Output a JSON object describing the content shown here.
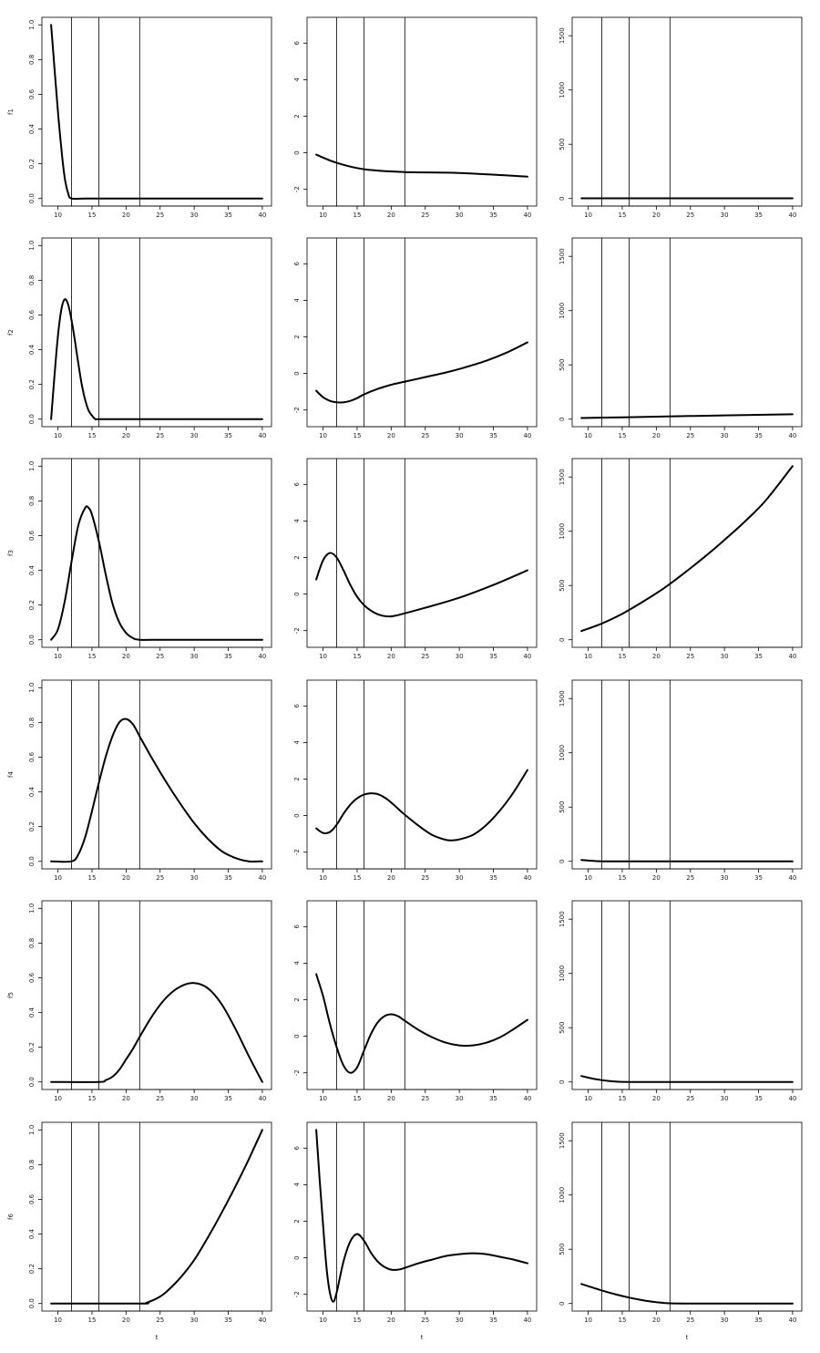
{
  "chart_data": {
    "type": "line",
    "layout": "6 rows x 3 columns",
    "xlabel": "t",
    "xlim": [
      9,
      40
    ],
    "xticks": [
      10,
      15,
      20,
      25,
      30,
      35,
      40
    ],
    "knots": [
      12,
      16,
      22
    ],
    "columns": [
      {
        "ylim": [
          0,
          1
        ],
        "yticks": [
          "0.0",
          "0.2",
          "0.4",
          "0.6",
          "0.8",
          "1.0"
        ]
      },
      {
        "ylim": [
          -2.5,
          7
        ],
        "yticks": [
          "-2",
          "0",
          "2",
          "4",
          "6"
        ]
      },
      {
        "ylim": [
          0,
          1600
        ],
        "yticks": [
          "0",
          "500",
          "1000",
          "1500"
        ]
      }
    ],
    "rows": [
      {
        "ylabel": "f1",
        "series": [
          {
            "x": [
              9,
              9.5,
              10,
              10.5,
              11,
              11.5,
              12,
              14,
              16,
              20,
              25,
              30,
              35,
              40
            ],
            "y": [
              1.0,
              0.75,
              0.5,
              0.29,
              0.12,
              0.03,
              0.0,
              0.0,
              0.0,
              0.0,
              0.0,
              0.0,
              0.0,
              0.0
            ]
          },
          {
            "x": [
              9,
              12,
              16,
              22,
              30,
              40
            ],
            "y": [
              -0.1,
              -0.55,
              -0.9,
              -1.05,
              -1.1,
              -1.3
            ]
          },
          {
            "x": [
              9,
              15,
              20,
              25,
              30,
              35,
              40
            ],
            "y": [
              2,
              2,
              2,
              2,
              2,
              2,
              2
            ]
          }
        ]
      },
      {
        "ylabel": "f2",
        "series": [
          {
            "x": [
              9,
              9.5,
              10,
              10.5,
              11,
              11.5,
              12,
              12.5,
              13,
              13.5,
              14,
              14.5,
              15,
              15.5,
              16,
              20,
              25,
              30,
              35,
              40
            ],
            "y": [
              0.0,
              0.25,
              0.48,
              0.63,
              0.69,
              0.66,
              0.57,
              0.45,
              0.32,
              0.2,
              0.11,
              0.05,
              0.02,
              0.0,
              0.0,
              0.0,
              0.0,
              0.0,
              0.0,
              0.0
            ]
          },
          {
            "x": [
              9,
              10,
              11,
              12,
              13,
              14,
              15,
              16,
              18,
              20,
              22,
              25,
              28,
              31,
              34,
              37,
              40
            ],
            "y": [
              -0.95,
              -1.3,
              -1.5,
              -1.58,
              -1.58,
              -1.5,
              -1.35,
              -1.15,
              -0.85,
              -0.62,
              -0.45,
              -0.2,
              0.05,
              0.35,
              0.7,
              1.15,
              1.7
            ]
          },
          {
            "x": [
              9,
              15,
              20,
              25,
              30,
              35,
              40
            ],
            "y": [
              10,
              17,
              23,
              29,
              35,
              40,
              45
            ]
          }
        ]
      },
      {
        "ylabel": "f3",
        "series": [
          {
            "x": [
              9,
              10,
              11,
              12,
              13,
              14,
              14.5,
              15,
              16,
              17,
              18,
              19,
              20,
              21,
              22,
              25,
              30,
              35,
              40
            ],
            "y": [
              0.0,
              0.06,
              0.22,
              0.45,
              0.66,
              0.76,
              0.76,
              0.72,
              0.57,
              0.38,
              0.21,
              0.1,
              0.04,
              0.01,
              0.0,
              0.0,
              0.0,
              0.0,
              0.0
            ]
          },
          {
            "x": [
              9,
              10,
              11,
              12,
              13,
              14,
              15,
              16,
              17,
              18,
              19,
              20,
              21,
              22,
              25,
              30,
              35,
              40
            ],
            "y": [
              0.8,
              1.85,
              2.25,
              2.0,
              1.3,
              0.5,
              -0.15,
              -0.6,
              -0.9,
              -1.1,
              -1.2,
              -1.22,
              -1.15,
              -1.05,
              -0.75,
              -0.2,
              0.5,
              1.3
            ]
          },
          {
            "x": [
              9,
              12,
              15,
              18,
              21,
              24,
              27,
              30,
              33,
              36,
              40
            ],
            "y": [
              80,
              150,
              240,
              350,
              470,
              610,
              760,
              920,
              1090,
              1280,
              1600
            ]
          }
        ]
      },
      {
        "ylabel": "f4",
        "series": [
          {
            "x": [
              9,
              12,
              13,
              14,
              15,
              16,
              17,
              18,
              19,
              20,
              21,
              22,
              24,
              26,
              28,
              30,
              32,
              34,
              36,
              38,
              40
            ],
            "y": [
              0.0,
              0.0,
              0.04,
              0.14,
              0.29,
              0.45,
              0.6,
              0.72,
              0.8,
              0.82,
              0.79,
              0.72,
              0.58,
              0.45,
              0.33,
              0.22,
              0.13,
              0.06,
              0.02,
              0.0,
              0.0
            ]
          },
          {
            "x": [
              9,
              10,
              11,
              12,
              13,
              14,
              15,
              16,
              17,
              18,
              19,
              20,
              21,
              22,
              24,
              26,
              28,
              29,
              30,
              32,
              34,
              36,
              38,
              40
            ],
            "y": [
              -0.7,
              -0.95,
              -0.9,
              -0.5,
              0.1,
              0.6,
              0.95,
              1.15,
              1.22,
              1.18,
              1.0,
              0.72,
              0.38,
              0.05,
              -0.55,
              -1.05,
              -1.32,
              -1.35,
              -1.3,
              -1.05,
              -0.5,
              0.3,
              1.3,
              2.5
            ]
          },
          {
            "x": [
              9,
              10,
              11,
              12,
              15,
              20,
              25,
              30,
              35,
              40
            ],
            "y": [
              12,
              7,
              3,
              0,
              0,
              0,
              0,
              0,
              0,
              0
            ]
          }
        ]
      },
      {
        "ylabel": "f5",
        "series": [
          {
            "x": [
              9,
              16,
              17,
              18,
              19,
              20,
              21,
              22,
              24,
              26,
              28,
              30,
              32,
              34,
              36,
              38,
              40
            ],
            "y": [
              0.0,
              0.0,
              0.01,
              0.03,
              0.07,
              0.13,
              0.19,
              0.26,
              0.39,
              0.49,
              0.55,
              0.57,
              0.54,
              0.45,
              0.31,
              0.15,
              0.0
            ]
          },
          {
            "x": [
              9,
              10,
              11,
              12,
              13,
              14,
              15,
              16,
              17,
              18,
              19,
              20,
              21,
              22,
              24,
              26,
              28,
              30,
              32,
              34,
              36,
              38,
              40
            ],
            "y": [
              3.4,
              2.2,
              0.7,
              -0.6,
              -1.6,
              -2.0,
              -1.7,
              -0.8,
              0.1,
              0.75,
              1.1,
              1.2,
              1.1,
              0.85,
              0.35,
              -0.05,
              -0.35,
              -0.5,
              -0.5,
              -0.35,
              -0.05,
              0.4,
              0.9
            ]
          },
          {
            "x": [
              9,
              10,
              11,
              12,
              13,
              14,
              15,
              16,
              20,
              25,
              30,
              35,
              40
            ],
            "y": [
              55,
              40,
              27,
              17,
              9,
              4,
              1,
              0,
              0,
              0,
              0,
              0,
              0
            ]
          }
        ]
      },
      {
        "ylabel": "f6",
        "series": [
          {
            "x": [
              9,
              22,
              23,
              24,
              25,
              26,
              28,
              30,
              32,
              34,
              36,
              38,
              40
            ],
            "y": [
              0.0,
              0.0,
              0.005,
              0.02,
              0.04,
              0.07,
              0.15,
              0.25,
              0.38,
              0.52,
              0.67,
              0.83,
              1.0
            ]
          },
          {
            "x": [
              9,
              9.5,
              10,
              10.5,
              11,
              11.5,
              12,
              13,
              14,
              15,
              16,
              17,
              18,
              19,
              20,
              21,
              22,
              24,
              26,
              28,
              30,
              32,
              34,
              36,
              38,
              40
            ],
            "y": [
              7.0,
              4.3,
              1.8,
              -0.5,
              -1.9,
              -2.4,
              -1.9,
              -0.2,
              0.9,
              1.3,
              0.95,
              0.3,
              -0.2,
              -0.5,
              -0.65,
              -0.65,
              -0.55,
              -0.3,
              -0.1,
              0.1,
              0.2,
              0.25,
              0.2,
              0.05,
              -0.1,
              -0.3
            ]
          },
          {
            "x": [
              9,
              10,
              12,
              14,
              16,
              18,
              20,
              22,
              25,
              30,
              35,
              40
            ],
            "y": [
              180,
              160,
              120,
              85,
              55,
              30,
              12,
              2,
              0,
              0,
              0,
              0
            ]
          }
        ]
      }
    ]
  }
}
